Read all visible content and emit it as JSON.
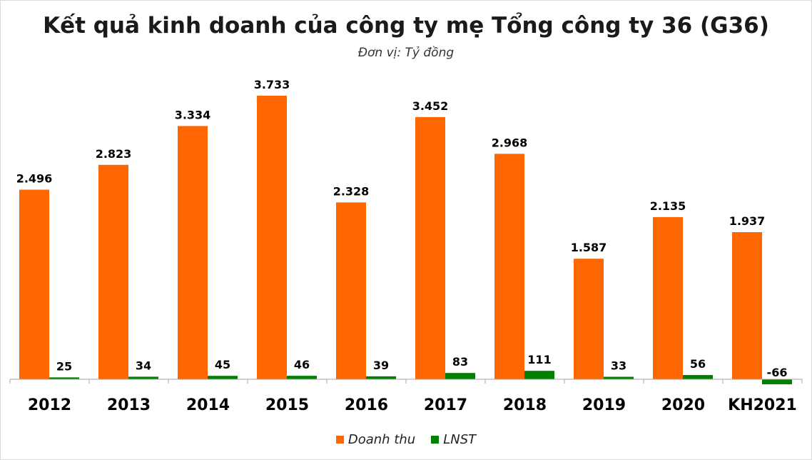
{
  "colors": {
    "revenue": "#FF6600",
    "profit": "#008000",
    "axis": "#a6a6a6"
  },
  "chart_data": {
    "type": "bar",
    "title": "Kết quả kinh doanh của công ty mẹ Tổng công ty 36 (G36)",
    "subtitle": "Đơn vị: Tỷ đồng",
    "categories": [
      "2012",
      "2013",
      "2014",
      "2015",
      "2016",
      "2017",
      "2018",
      "2019",
      "2020",
      "KH2021"
    ],
    "series": [
      {
        "name": "Doanh thu",
        "values": [
          2496,
          2823,
          3334,
          3733,
          2328,
          3452,
          2968,
          1587,
          2135,
          1937
        ],
        "labels": [
          "2.496",
          "2.823",
          "3.334",
          "3.733",
          "2.328",
          "3.452",
          "2.968",
          "1.587",
          "2.135",
          "1.937"
        ]
      },
      {
        "name": "LNST",
        "values": [
          25,
          34,
          45,
          46,
          39,
          83,
          111,
          33,
          56,
          -66
        ],
        "labels": [
          "25",
          "34",
          "45",
          "46",
          "39",
          "83",
          "111",
          "33",
          "56",
          "-66"
        ]
      }
    ],
    "legend": "bottom",
    "grid": false
  }
}
